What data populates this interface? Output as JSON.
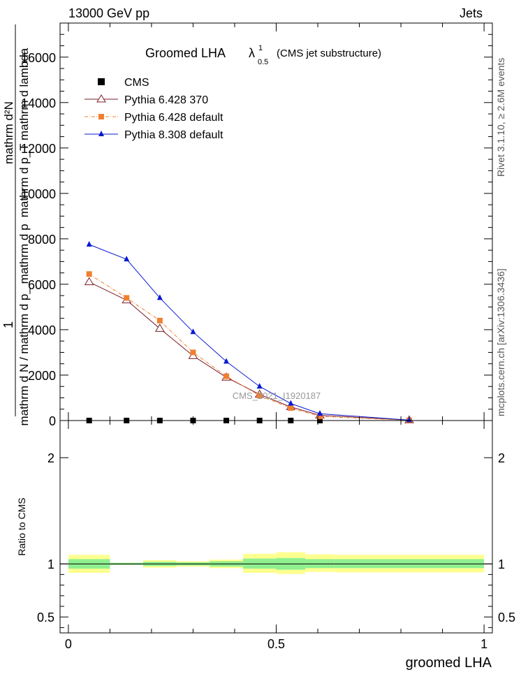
{
  "header": {
    "left": "13000 GeV pp",
    "right": "Jets"
  },
  "side_text": {
    "rivet": "Rivet 3.1.10, ≥ 2.6M events",
    "mcplots": "mcplots.cern.ch [arXiv:1306.3436]"
  },
  "watermark": "CMS_2021_I1920187",
  "chart_data": {
    "type": "line",
    "title": {
      "main": "Groomed LHA",
      "symbol": "λ",
      "sup": "1",
      "sub": "0.5",
      "note": "(CMS jet substructure)"
    },
    "ylabel_numerator": "1",
    "ylabel_denominator": "mathrm d N / mathrm d p_ mathrm d p",
    "ylabel_derivative": "mathrm d²N",
    "ylabel_derivative_den": "mathrm d p_T mathrm d lambda",
    "xlabel": "groomed LHA",
    "ratio_ylabel": "Ratio to CMS",
    "ylim": [
      0,
      17500
    ],
    "xlim": [
      -0.02,
      1.02
    ],
    "ratio_ylim": [
      0.35,
      2.35
    ],
    "yticks": [
      0,
      2000,
      4000,
      6000,
      8000,
      10000,
      12000,
      14000,
      16000
    ],
    "ytick_labels": [
      "0",
      "2000",
      "4000",
      "6000",
      "8000",
      "10000",
      "12000",
      "14000",
      "16000"
    ],
    "xticks": [
      0,
      0.5,
      1
    ],
    "xtick_labels": [
      "0",
      "0.5",
      "1"
    ],
    "ratio_yticks": [
      0.5,
      1,
      2
    ],
    "ratio_ytick_labels": [
      "0.5",
      "1",
      "2"
    ],
    "bin_edges": [
      0,
      0.1,
      0.18,
      0.26,
      0.34,
      0.42,
      0.5,
      0.57,
      0.64,
      1.0
    ],
    "x": [
      0.05,
      0.14,
      0.22,
      0.3,
      0.38,
      0.46,
      0.535,
      0.605,
      0.82
    ],
    "series": [
      {
        "name": "CMS",
        "marker": "square",
        "color": "#000000",
        "values": [
          0,
          0,
          0,
          0,
          0,
          0,
          0,
          0,
          0
        ]
      },
      {
        "name": "Pythia 6.428 370",
        "marker": "open-triangle",
        "color": "#7b1f2a",
        "dash": "",
        "values": [
          6100,
          5300,
          4050,
          2850,
          1900,
          1150,
          600,
          230,
          20
        ]
      },
      {
        "name": "Pythia 6.428 default",
        "marker": "square",
        "color": "#f08030",
        "dash": "5,2,1,2",
        "values": [
          6450,
          5400,
          4400,
          3000,
          1950,
          1100,
          550,
          180,
          10
        ]
      },
      {
        "name": "Pythia 8.308 default",
        "marker": "triangle",
        "color": "#0a1ad0",
        "dash": "",
        "values": [
          7750,
          7100,
          5400,
          3900,
          2600,
          1500,
          750,
          300,
          20
        ]
      }
    ],
    "ratio_band_inner": [
      [
        0.955,
        1.045
      ],
      [
        0.99,
        1.01
      ],
      [
        0.98,
        1.02
      ],
      [
        0.985,
        1.015
      ],
      [
        0.975,
        1.025
      ],
      [
        0.955,
        1.05
      ],
      [
        0.945,
        1.055
      ],
      [
        0.96,
        1.045
      ],
      [
        0.96,
        1.045
      ]
    ],
    "ratio_band_outer": [
      [
        0.915,
        1.085
      ],
      [
        0.99,
        1.01
      ],
      [
        0.965,
        1.035
      ],
      [
        0.975,
        1.025
      ],
      [
        0.96,
        1.04
      ],
      [
        0.915,
        1.095
      ],
      [
        0.905,
        1.11
      ],
      [
        0.925,
        1.09
      ],
      [
        0.92,
        1.085
      ]
    ],
    "colors": {
      "band_inner": "#90f090",
      "band_outer": "#ffff90"
    },
    "legend_position": "top-left",
    "grid": false
  }
}
